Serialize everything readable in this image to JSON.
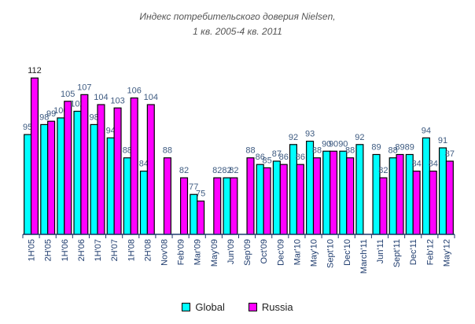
{
  "chart_data": {
    "type": "bar",
    "title_line1": "Индекс потребительского доверия Nielsen,",
    "title_line2": "1 кв. 2005-4 кв. 2011",
    "categories": [
      "1H'05",
      "2H'05",
      "1H'06",
      "2H'06",
      "1H'07",
      "2H'07",
      "1H'08",
      "2H'08",
      "Nov'08",
      "Feb'09",
      "Mar'09",
      "May'09",
      "Jun'09",
      "Sep'09",
      "Oct'09",
      "Dec'09",
      "Mar'10",
      "May'10",
      "Sept'10",
      "Dec'10",
      "March'11",
      "Jun'11",
      "Sept'11",
      "Dec'11",
      "Feb'12",
      "May'12"
    ],
    "series": [
      {
        "name": "Global",
        "color": "#00FFFF",
        "values": [
          95,
          98,
          100,
          102,
          98,
          94,
          88,
          84,
          null,
          null,
          77,
          null,
          82,
          null,
          86,
          87,
          92,
          93,
          90,
          90,
          92,
          89,
          88,
          89,
          94,
          91
        ]
      },
      {
        "name": "Russia",
        "color": "#FF00FF",
        "values": [
          112,
          99,
          105,
          107,
          104,
          103,
          106,
          104,
          88,
          82,
          75,
          82,
          82,
          88,
          85,
          86,
          86,
          88,
          90,
          88,
          null,
          82,
          89,
          84,
          84,
          87
        ]
      }
    ],
    "ylim": [
      65,
      115
    ],
    "grid": false,
    "legend": "bottom"
  }
}
